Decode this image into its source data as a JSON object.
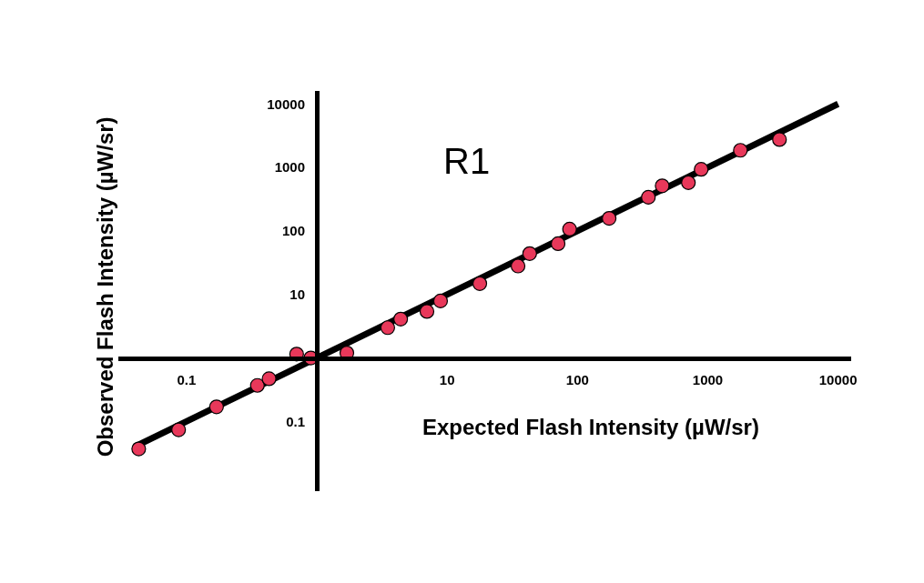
{
  "chart_data": {
    "type": "scatter",
    "xlabel": "Expected Flash Intensity (µW/sr)",
    "ylabel": "Observed Flash Intensity (µW/sr)",
    "annotations": [
      "R1"
    ],
    "log": "xy",
    "xlim": [
      0.03,
      12600
    ],
    "ylim": [
      0.008,
      16000
    ],
    "xticks": [
      0.1,
      10,
      100,
      1000,
      10000
    ],
    "yticks": [
      0.1,
      10,
      100,
      1000,
      10000
    ],
    "series": [
      {
        "type": "line",
        "marker": "none",
        "color": "#000000",
        "x": [
          0.04,
          10000
        ],
        "values": [
          0.04,
          10000
        ]
      },
      {
        "marker": "circle",
        "color": "#e8385a",
        "x": [
          0.043,
          0.087,
          0.17,
          0.35,
          0.43,
          0.7,
          0.9,
          1.7,
          3.5,
          4.4,
          7.0,
          8.9,
          17.8,
          35,
          43,
          71,
          87,
          175,
          350,
          447,
          710,
          890,
          1780,
          3550
        ],
        "values": [
          0.037,
          0.074,
          0.17,
          0.37,
          0.47,
          1.15,
          1.0,
          1.2,
          3.0,
          4.1,
          5.4,
          7.9,
          14.8,
          28,
          44,
          63,
          107,
          158,
          339,
          513,
          575,
          933,
          1860,
          2750
        ]
      }
    ]
  }
}
